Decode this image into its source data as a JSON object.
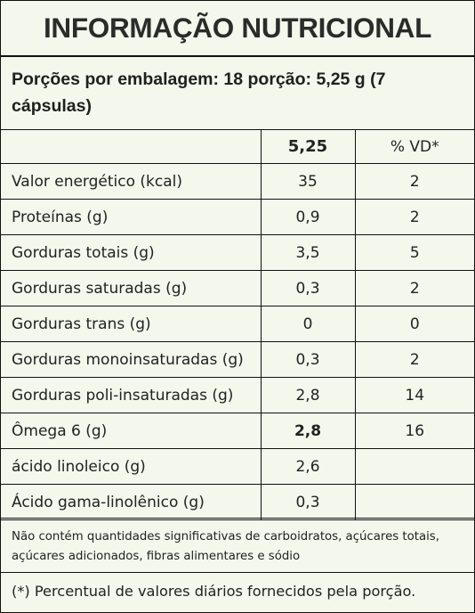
{
  "title": "INFORMAÇÃO NUTRICIONAL",
  "serving": "Porções por embalagem: 18 porção: 5,25 g (7 cápsulas)",
  "header": {
    "value": "5,25",
    "vd": "% VD*"
  },
  "rows": [
    {
      "name": "Valor energético (kcal)",
      "value": "35",
      "vd": "2"
    },
    {
      "name": "Proteínas (g)",
      "value": "0,9",
      "vd": "2"
    },
    {
      "name": "Gorduras totais (g)",
      "value": "3,5",
      "vd": "5"
    },
    {
      "name": "Gorduras saturadas (g)",
      "value": "0,3",
      "vd": "2"
    },
    {
      "name": "Gorduras trans (g)",
      "value": "0",
      "vd": "0"
    },
    {
      "name": "Gorduras monoinsaturadas (g)",
      "value": "0,3",
      "vd": "2"
    },
    {
      "name": "Gorduras poli-insaturadas (g)",
      "value": "2,8",
      "vd": "14"
    },
    {
      "name": "Ômega 6 (g)",
      "value": "2,8",
      "vd": "16"
    },
    {
      "name": "ácido linoleico (g)",
      "value": "2,6",
      "vd": ""
    },
    {
      "name": "Ácido gama-linolênico (g)",
      "value": "0,3",
      "vd": ""
    }
  ],
  "note": "Não contém quantidades significativas de carboidratos, açúcares totais, açúcares adicionados, fibras alimentares e sódio",
  "footnote": "(*) Percentual de valores diários fornecidos pela porção."
}
